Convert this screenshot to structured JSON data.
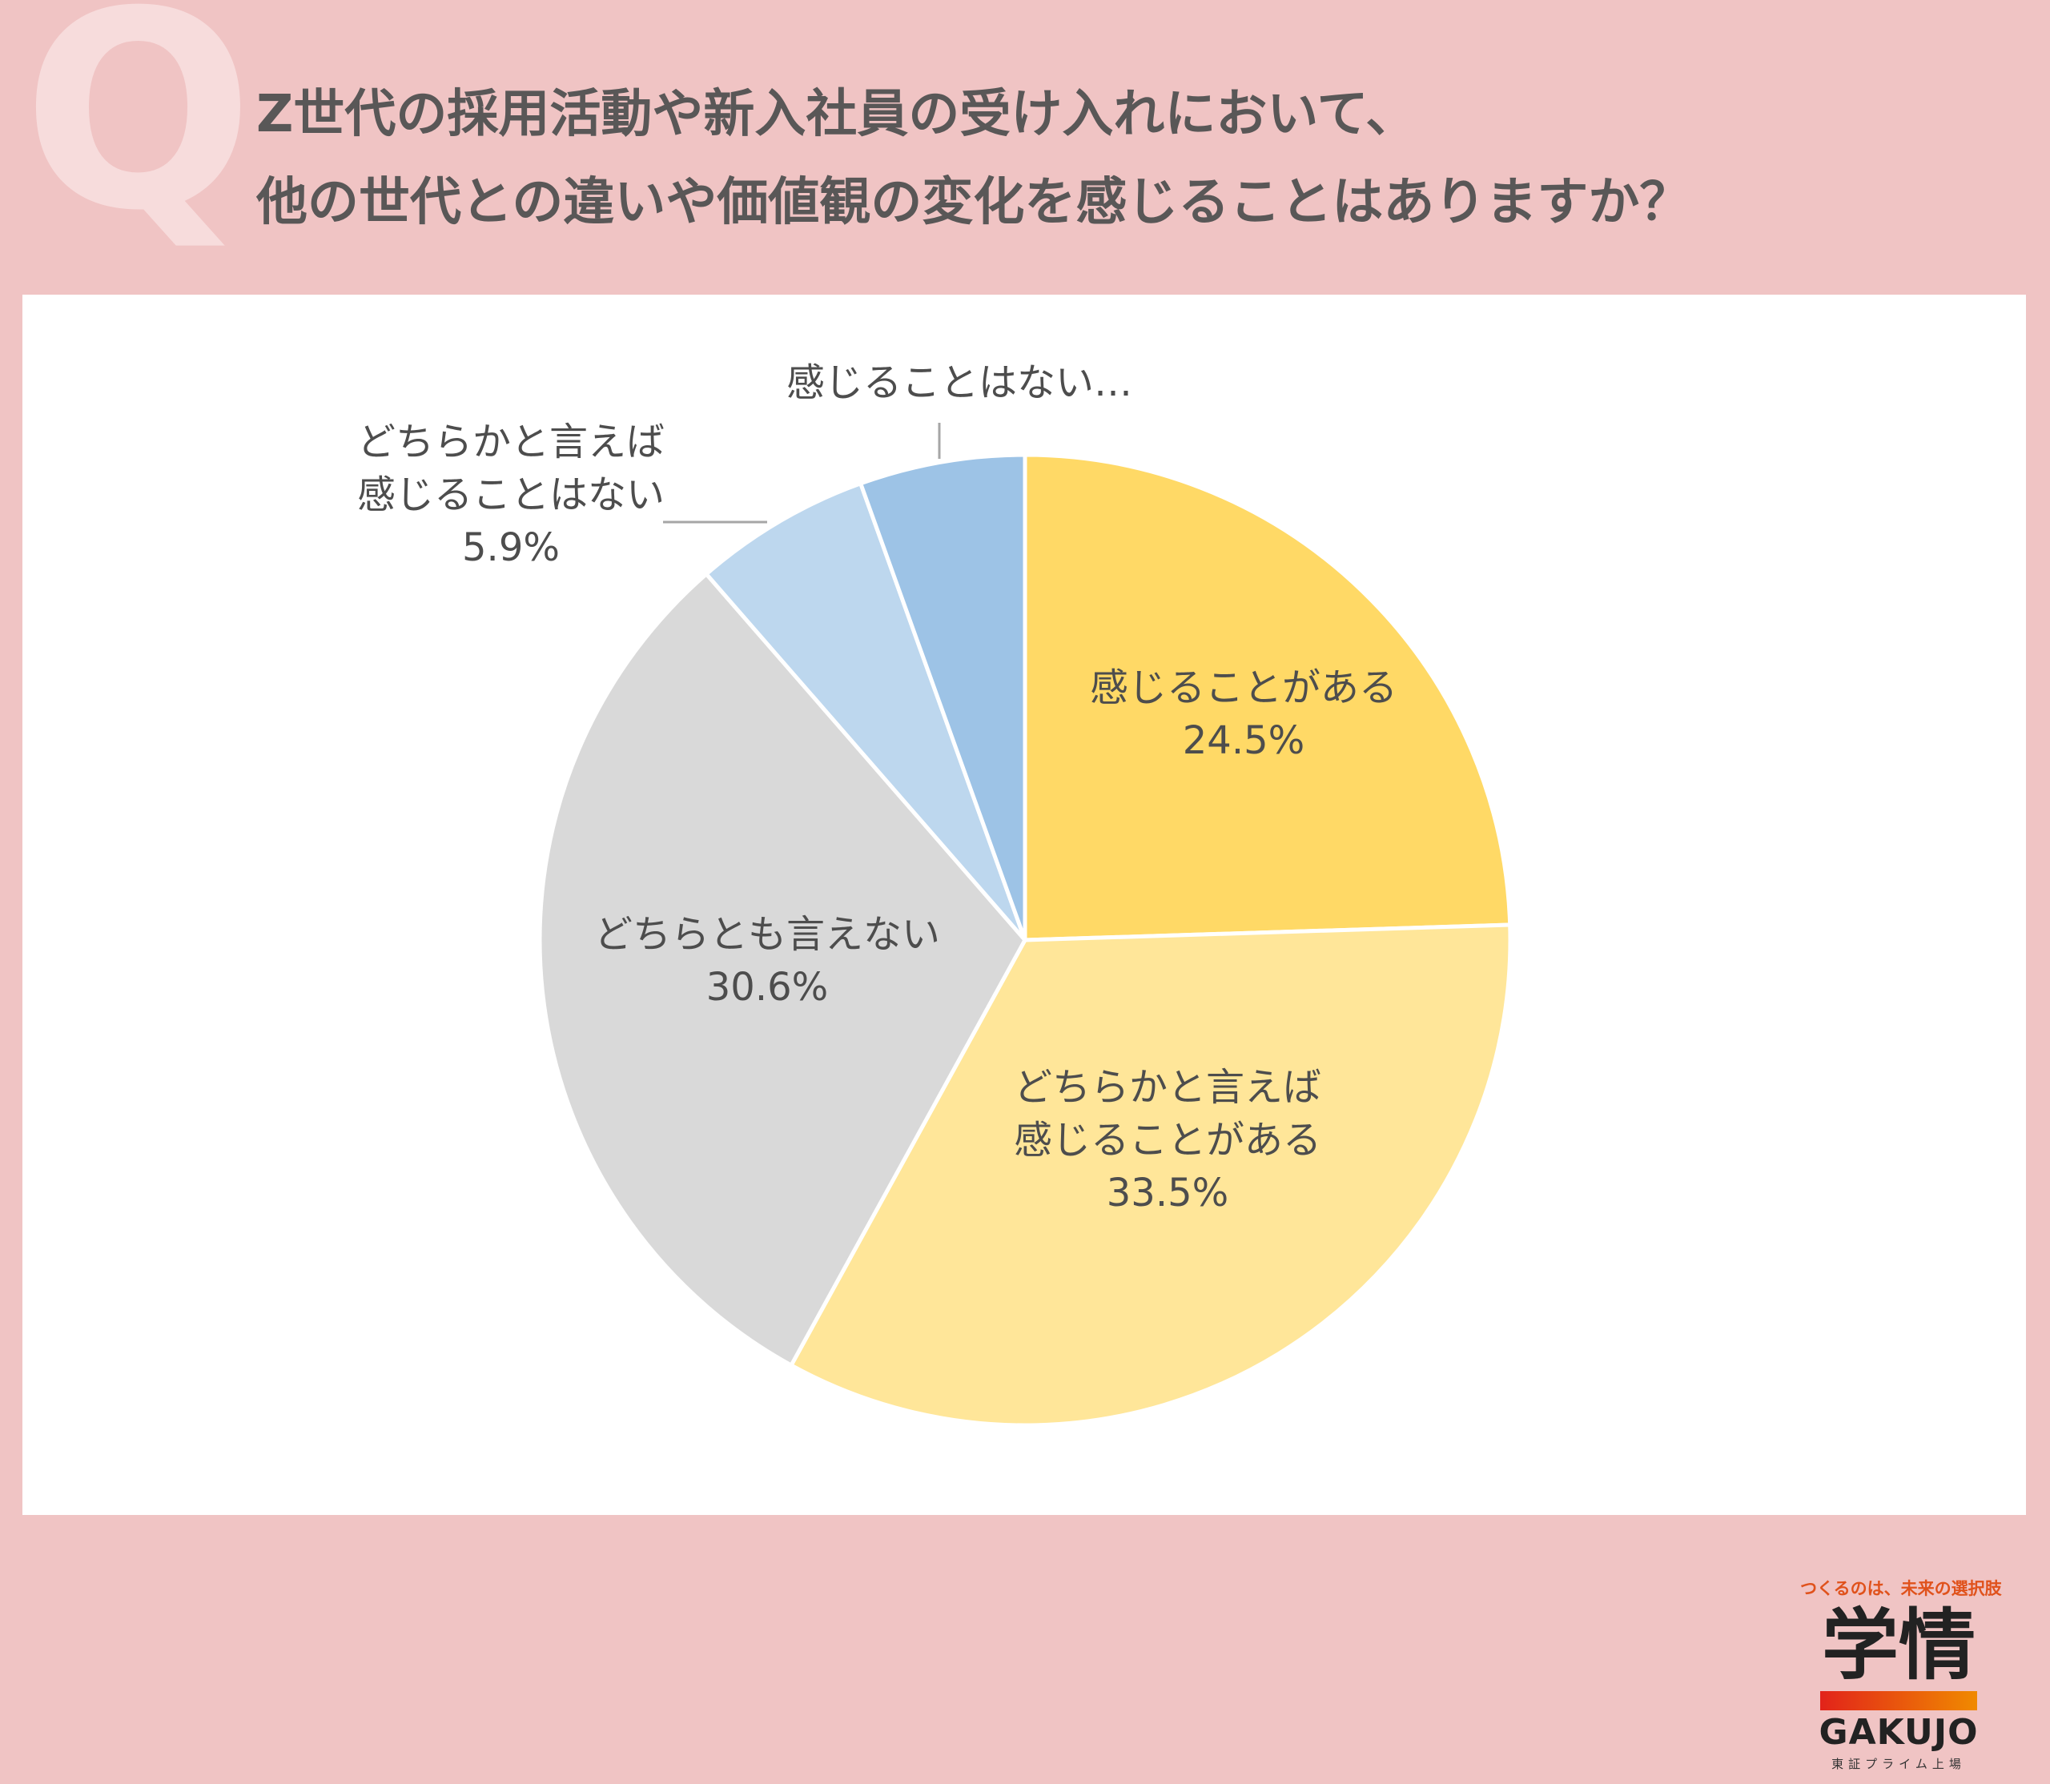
{
  "badge": "Q",
  "title_lines": [
    "Z世代の採用活動や新入社員の受け入れにおいて、",
    "他の世代との違いや価値観の変化を感じることはありますか？"
  ],
  "chart_data": {
    "type": "pie",
    "start": "top (12 o'clock), clockwise",
    "slices": [
      {
        "label_lines": [
          "感じることがある"
        ],
        "value": 24.5,
        "value_text": "24.5%",
        "color": "#ffd966"
      },
      {
        "label_lines": [
          "どちらかと言えば",
          "感じることがある"
        ],
        "value": 33.5,
        "value_text": "33.5%",
        "color": "#ffe699"
      },
      {
        "label_lines": [
          "どちらとも言えない"
        ],
        "value": 30.6,
        "value_text": "30.6%",
        "color": "#d9d9d9"
      },
      {
        "label_lines": [
          "どちらかと言えば",
          "感じることはない"
        ],
        "value": 5.9,
        "value_text": "5.9%",
        "color": "#bdd7ee"
      },
      {
        "label_lines": [
          "感じることはない…"
        ],
        "value": 5.5,
        "value_text": "",
        "color": "#9dc3e6"
      }
    ]
  },
  "logo": {
    "tagline": "つくるのは、未来の選択肢",
    "mark": "学情",
    "name": "GAKUJO",
    "sub": "東証プライム上場"
  }
}
